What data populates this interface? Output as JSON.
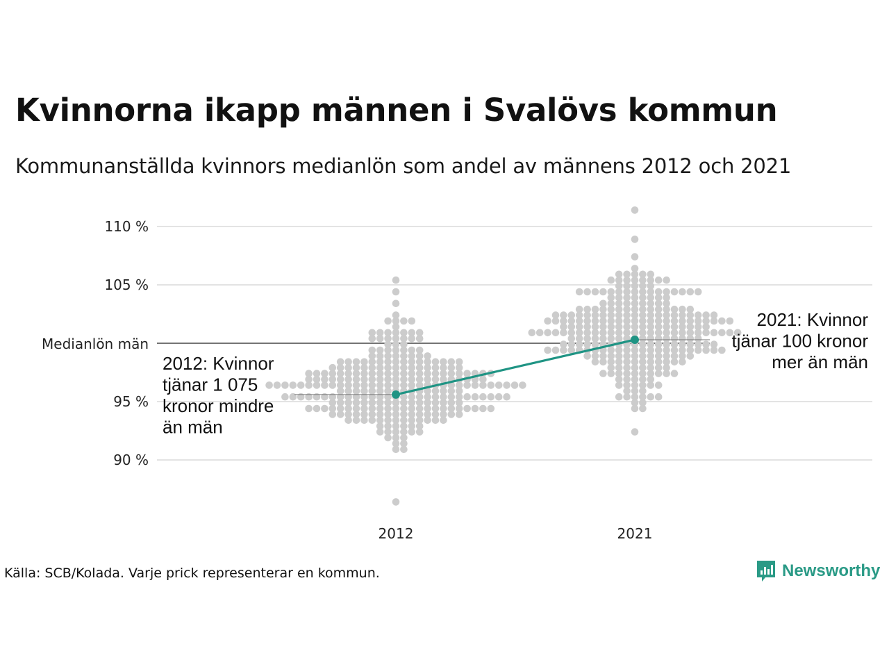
{
  "colors": {
    "dots": "#cccccc",
    "highlight": "#1f9484",
    "gridline": "#e3e3e3",
    "reference_line": "#222222",
    "logo": "#2a9a86"
  },
  "chart_data": {
    "type": "scatter",
    "title": "Kvinnorna ikapp männen i Svalövs kommun",
    "subtitle": "Kommunanställda kvinnors medianlön som andel av männens 2012 och 2021",
    "categories": [
      "2012",
      "2021"
    ],
    "ylim": [
      86,
      112
    ],
    "yticks": [
      {
        "value": 90,
        "label": "90 %"
      },
      {
        "value": 95,
        "label": "95 %"
      },
      {
        "value": 105,
        "label": "105 %"
      },
      {
        "value": 110,
        "label": "110 %"
      }
    ],
    "reference_line": {
      "value": 100,
      "label": "Medianlön män"
    },
    "gridlines": true,
    "distribution_note": "Varje prick representerar en kommun.",
    "highlight_series": {
      "values": [
        {
          "x": "2012",
          "y": 95.6
        },
        {
          "x": "2021",
          "y": 100.3
        }
      ]
    },
    "distributions": [
      {
        "x": "2012",
        "count": 290,
        "min": 86.5,
        "max": 105.2,
        "median": 96.2
      },
      {
        "x": "2021",
        "count": 290,
        "min": 92.6,
        "max": 111.3,
        "median": 101.2
      }
    ],
    "annotations": [
      {
        "id": "a2012",
        "lines": [
          "2012: Kvinnor",
          "tjänar 1 075",
          "kronor mindre",
          "än män"
        ]
      },
      {
        "id": "a2021",
        "lines": [
          "2021: Kvinnor",
          "tjänar 100 kronor",
          "mer än män"
        ]
      }
    ]
  },
  "footer": {
    "source": "Källa: SCB/Kolada. Varje prick representerar en kommun.",
    "logo_text": "Newsworthy",
    "logo_icon": "newsworthy-logo-icon"
  }
}
